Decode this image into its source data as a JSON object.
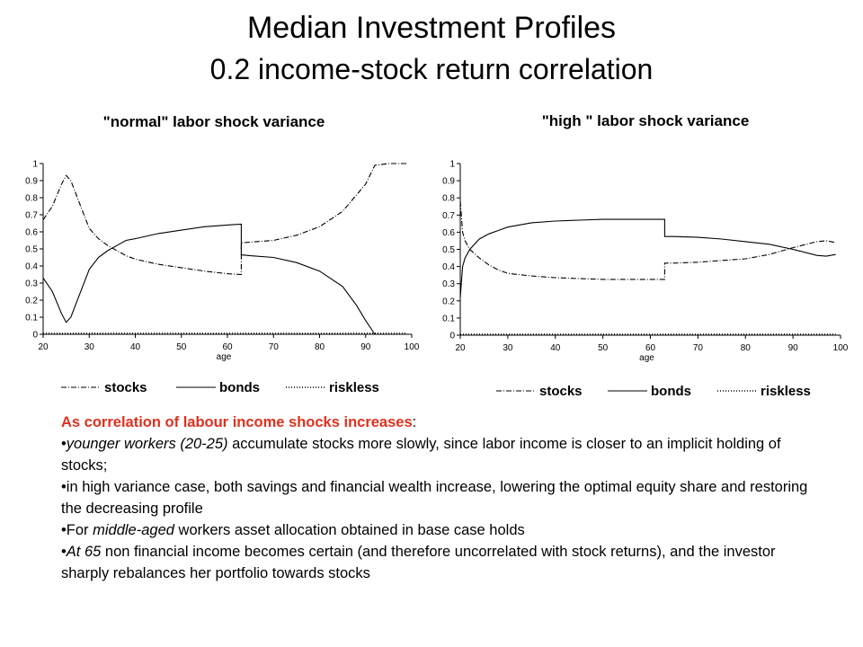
{
  "header": {
    "title": "Median Investment Profiles",
    "subtitle": "0.2 income-stock return correlation"
  },
  "chart_data": [
    {
      "type": "line",
      "title": "\"normal\" labor shock variance",
      "xlabel": "age",
      "ylabel": "",
      "xlim": [
        20,
        100
      ],
      "ylim": [
        0,
        1
      ],
      "xticks": [
        "20",
        "30",
        "40",
        "50",
        "60",
        "70",
        "80",
        "90",
        "100"
      ],
      "yticks": [
        "0",
        "0.1",
        "0.2",
        "0.3",
        "0.4",
        "0.5",
        "0.6",
        "0.7",
        "0.8",
        "0.9",
        "1"
      ],
      "legend_position": "bottom",
      "grid": false,
      "series": [
        {
          "name": "stocks",
          "style": "dashdot",
          "x": [
            20,
            22,
            24,
            25,
            26,
            28,
            30,
            32,
            34,
            36,
            38,
            40,
            45,
            50,
            55,
            60,
            63,
            63.01,
            65,
            70,
            75,
            80,
            85,
            90,
            92,
            95,
            99
          ],
          "y": [
            0.67,
            0.75,
            0.88,
            0.93,
            0.9,
            0.76,
            0.62,
            0.56,
            0.52,
            0.49,
            0.46,
            0.44,
            0.41,
            0.39,
            0.37,
            0.355,
            0.35,
            0.535,
            0.54,
            0.55,
            0.58,
            0.63,
            0.72,
            0.88,
            0.99,
            1.0,
            1.0
          ]
        },
        {
          "name": "bonds",
          "style": "solid",
          "x": [
            20,
            22,
            24,
            25,
            26,
            28,
            30,
            32,
            34,
            36,
            38,
            40,
            45,
            50,
            55,
            60,
            63,
            63.01,
            65,
            70,
            75,
            80,
            85,
            88,
            90,
            92
          ],
          "y": [
            0.33,
            0.25,
            0.12,
            0.07,
            0.1,
            0.24,
            0.38,
            0.45,
            0.49,
            0.52,
            0.55,
            0.56,
            0.59,
            0.61,
            0.63,
            0.64,
            0.645,
            0.465,
            0.46,
            0.45,
            0.42,
            0.37,
            0.28,
            0.17,
            0.08,
            0.0
          ]
        },
        {
          "name": "riskless",
          "style": "dotted",
          "x": [
            20,
            99
          ],
          "y": [
            0.005,
            0.005
          ]
        }
      ]
    },
    {
      "type": "line",
      "title": "\"high \" labor shock variance",
      "xlabel": "age",
      "ylabel": "",
      "xlim": [
        20,
        100
      ],
      "ylim": [
        0,
        1
      ],
      "xticks": [
        "20",
        "30",
        "40",
        "50",
        "60",
        "70",
        "80",
        "90",
        "100"
      ],
      "yticks": [
        "0",
        "0.1",
        "0.2",
        "0.3",
        "0.4",
        "0.5",
        "0.6",
        "0.7",
        "0.8",
        "0.9",
        "1"
      ],
      "legend_position": "bottom",
      "grid": false,
      "series": [
        {
          "name": "stocks",
          "style": "dashdot",
          "x": [
            20,
            20.5,
            21,
            22,
            24,
            26,
            28,
            30,
            35,
            40,
            45,
            50,
            55,
            60,
            63,
            63.01,
            65,
            70,
            75,
            80,
            85,
            90,
            95,
            97,
            99
          ],
          "y": [
            0.78,
            0.6,
            0.55,
            0.5,
            0.45,
            0.41,
            0.38,
            0.36,
            0.345,
            0.335,
            0.33,
            0.325,
            0.325,
            0.325,
            0.325,
            0.42,
            0.42,
            0.425,
            0.435,
            0.445,
            0.47,
            0.51,
            0.545,
            0.55,
            0.54
          ]
        },
        {
          "name": "bonds",
          "style": "solid",
          "x": [
            20,
            20.5,
            21,
            22,
            24,
            26,
            28,
            30,
            35,
            40,
            45,
            50,
            55,
            60,
            63,
            63.01,
            65,
            70,
            75,
            80,
            85,
            90,
            95,
            97,
            99
          ],
          "y": [
            0.22,
            0.4,
            0.45,
            0.5,
            0.56,
            0.59,
            0.61,
            0.63,
            0.655,
            0.665,
            0.67,
            0.675,
            0.675,
            0.675,
            0.675,
            0.575,
            0.575,
            0.57,
            0.56,
            0.545,
            0.53,
            0.5,
            0.465,
            0.46,
            0.47
          ]
        },
        {
          "name": "riskless",
          "style": "dotted",
          "x": [
            20,
            99
          ],
          "y": [
            0.005,
            0.005
          ]
        }
      ]
    }
  ],
  "notes": {
    "heading": "As correlation of labour income shocks increases",
    "heading_colon": ":",
    "b1_italic": "younger workers (20-25)",
    "b1_rest": " accumulate stocks more slowly, since labor income is closer to an implicit holding of stocks;",
    "b2": "in high variance case, both savings and financial wealth increase, lowering the optimal equity share and restoring the decreasing profile",
    "b3_pre": "For ",
    "b3_italic": "middle-aged",
    "b3_rest": " workers asset allocation obtained in base case holds",
    "b4_italic": "At 65",
    "b4_rest": " non financial income becomes certain (and therefore uncorrelated with stock returns), and the investor sharply rebalances her portfolio towards stocks",
    "bullet": "•"
  }
}
